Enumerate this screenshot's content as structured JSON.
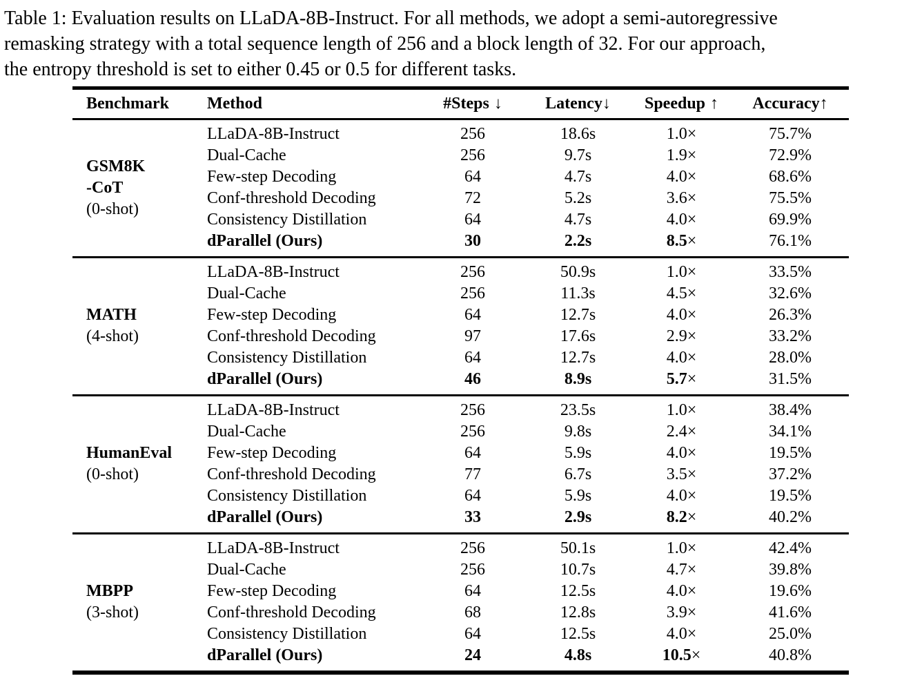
{
  "caption": {
    "full_text": "Table 1: Evaluation results on LLaDA-8B-Instruct. For all methods, we adopt a semi-autoregressive remasking strategy with a total sequence length of 256 and a block length of 32. For our approach, the entropy threshold is set to either 0.45 or 0.5 for different tasks.",
    "lines": [
      "Table 1: Evaluation results on LLaDA-8B-Instruct. For all methods, we adopt a semi-autoregressive",
      "remasking strategy with a total sequence length of 256 and a block length of 32. For our approach,",
      "the entropy threshold is set to either 0.45 or 0.5 for different tasks."
    ]
  },
  "table": {
    "times_glyph": "×",
    "headers": [
      {
        "text": "Benchmark",
        "arrow": ""
      },
      {
        "text": "Method",
        "arrow": ""
      },
      {
        "text": "#Steps",
        "arrow": "↓"
      },
      {
        "text": "Latency",
        "arrow": "↓"
      },
      {
        "text": "Speedup",
        "arrow": "↑"
      },
      {
        "text": "Accuracy",
        "arrow": "↑"
      }
    ],
    "groups": [
      {
        "benchmark": {
          "line1": "GSM8K",
          "line2": "-CoT",
          "shots": "(0-shot)"
        },
        "rows": [
          {
            "method": "LLaDA-8B-Instruct",
            "steps": "256",
            "latency": "18.6s",
            "speedup": "1.0",
            "accuracy": "75.7%",
            "emphasis": false
          },
          {
            "method": "Dual-Cache",
            "steps": "256",
            "latency": "9.7s",
            "speedup": "1.9",
            "accuracy": "72.9%",
            "emphasis": false
          },
          {
            "method": "Few-step Decoding",
            "steps": "64",
            "latency": "4.7s",
            "speedup": "4.0",
            "accuracy": "68.6%",
            "emphasis": false
          },
          {
            "method": "Conf-threshold Decoding",
            "steps": "72",
            "latency": "5.2s",
            "speedup": "3.6",
            "accuracy": "75.5%",
            "emphasis": false
          },
          {
            "method": "Consistency Distillation",
            "steps": "64",
            "latency": "4.7s",
            "speedup": "4.0",
            "accuracy": "69.9%",
            "emphasis": false
          },
          {
            "method": "dParallel (Ours)",
            "steps": "30",
            "latency": "2.2s",
            "speedup": "8.5",
            "accuracy": "76.1%",
            "emphasis": true
          }
        ]
      },
      {
        "benchmark": {
          "line1": "MATH",
          "line2": "",
          "shots": "(4-shot)"
        },
        "rows": [
          {
            "method": "LLaDA-8B-Instruct",
            "steps": "256",
            "latency": "50.9s",
            "speedup": "1.0",
            "accuracy": "33.5%",
            "emphasis": false
          },
          {
            "method": "Dual-Cache",
            "steps": "256",
            "latency": "11.3s",
            "speedup": "4.5",
            "accuracy": "32.6%",
            "emphasis": false
          },
          {
            "method": "Few-step Decoding",
            "steps": "64",
            "latency": "12.7s",
            "speedup": "4.0",
            "accuracy": "26.3%",
            "emphasis": false
          },
          {
            "method": "Conf-threshold Decoding",
            "steps": "97",
            "latency": "17.6s",
            "speedup": "2.9",
            "accuracy": "33.2%",
            "emphasis": false
          },
          {
            "method": "Consistency Distillation",
            "steps": "64",
            "latency": "12.7s",
            "speedup": "4.0",
            "accuracy": "28.0%",
            "emphasis": false
          },
          {
            "method": "dParallel (Ours)",
            "steps": "46",
            "latency": "8.9s",
            "speedup": "5.7",
            "accuracy": "31.5%",
            "emphasis": true
          }
        ]
      },
      {
        "benchmark": {
          "line1": "HumanEval",
          "line2": "",
          "shots": "(0-shot)"
        },
        "rows": [
          {
            "method": "LLaDA-8B-Instruct",
            "steps": "256",
            "latency": "23.5s",
            "speedup": "1.0",
            "accuracy": "38.4%",
            "emphasis": false
          },
          {
            "method": "Dual-Cache",
            "steps": "256",
            "latency": "9.8s",
            "speedup": "2.4",
            "accuracy": "34.1%",
            "emphasis": false
          },
          {
            "method": "Few-step Decoding",
            "steps": "64",
            "latency": "5.9s",
            "speedup": "4.0",
            "accuracy": "19.5%",
            "emphasis": false
          },
          {
            "method": "Conf-threshold Decoding",
            "steps": "77",
            "latency": "6.7s",
            "speedup": "3.5",
            "accuracy": "37.2%",
            "emphasis": false
          },
          {
            "method": "Consistency Distillation",
            "steps": "64",
            "latency": "5.9s",
            "speedup": "4.0",
            "accuracy": "19.5%",
            "emphasis": false
          },
          {
            "method": "dParallel (Ours)",
            "steps": "33",
            "latency": "2.9s",
            "speedup": "8.2",
            "accuracy": "40.2%",
            "emphasis": true
          }
        ]
      },
      {
        "benchmark": {
          "line1": "MBPP",
          "line2": "",
          "shots": "(3-shot)"
        },
        "rows": [
          {
            "method": "LLaDA-8B-Instruct",
            "steps": "256",
            "latency": "50.1s",
            "speedup": "1.0",
            "accuracy": "42.4%",
            "emphasis": false
          },
          {
            "method": "Dual-Cache",
            "steps": "256",
            "latency": "10.7s",
            "speedup": "4.7",
            "accuracy": "39.8%",
            "emphasis": false
          },
          {
            "method": "Few-step Decoding",
            "steps": "64",
            "latency": "12.5s",
            "speedup": "4.0",
            "accuracy": "19.6%",
            "emphasis": false
          },
          {
            "method": "Conf-threshold Decoding",
            "steps": "68",
            "latency": "12.8s",
            "speedup": "3.9",
            "accuracy": "41.6%",
            "emphasis": false
          },
          {
            "method": "Consistency Distillation",
            "steps": "64",
            "latency": "12.5s",
            "speedup": "4.0",
            "accuracy": "25.0%",
            "emphasis": false
          },
          {
            "method": "dParallel (Ours)",
            "steps": "24",
            "latency": "4.8s",
            "speedup": "10.5",
            "accuracy": "40.8%",
            "emphasis": true
          }
        ]
      }
    ]
  }
}
